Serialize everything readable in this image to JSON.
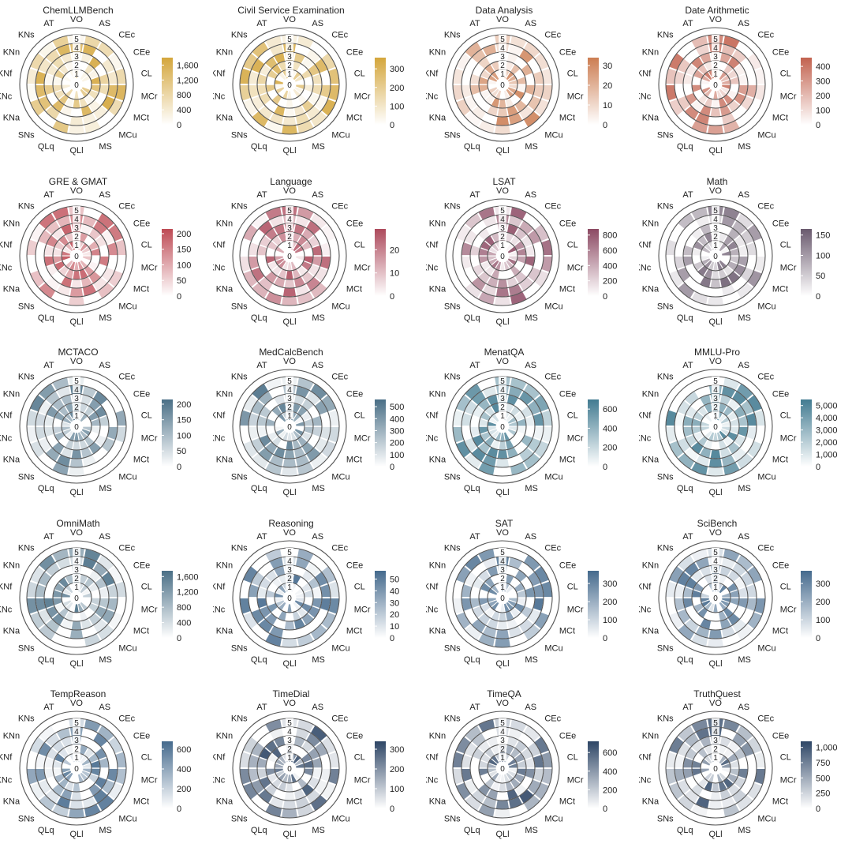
{
  "palettes": {
    "gold": "#d4a63c",
    "orange": "#cc7d52",
    "rust": "#c2624f",
    "red": "#be4b55",
    "crimson": "#ad4a5c",
    "maroon": "#8c4a63",
    "plum": "#6a5a6e",
    "slate": "#4a6f86",
    "teal": "#427b91",
    "blue": "#456a8d",
    "navy": "#2e4666"
  },
  "categories": [
    "VO",
    "AS",
    "CEc",
    "CEe",
    "CL",
    "MCr",
    "MCt",
    "MCu",
    "MS",
    "QLl",
    "QLq",
    "SNs",
    "KNa",
    "KNc",
    "KNf",
    "KNn",
    "KNs",
    "AT"
  ],
  "ring_labels": [
    "0",
    "1",
    "2",
    "3",
    "4",
    "5"
  ],
  "chart_data": [
    {
      "type": "polar-heatmap",
      "title": "ChemLLMBench",
      "palette": "gold",
      "colorbar_max": 1800,
      "colorbar_ticks": [
        "1,600",
        "1,200",
        "800",
        "400",
        "0"
      ],
      "colorbar_values": [
        1600,
        1200,
        800,
        400,
        0
      ]
    },
    {
      "type": "polar-heatmap",
      "title": "Civil Service Examination",
      "palette": "gold",
      "colorbar_max": 360,
      "colorbar_ticks": [
        "300",
        "200",
        "100",
        "0"
      ],
      "colorbar_values": [
        300,
        200,
        100,
        0
      ]
    },
    {
      "type": "polar-heatmap",
      "title": "Data Analysis",
      "palette": "orange",
      "colorbar_max": 34,
      "colorbar_ticks": [
        "30",
        "20",
        "10",
        "0"
      ],
      "colorbar_values": [
        30,
        20,
        10,
        0
      ]
    },
    {
      "type": "polar-heatmap",
      "title": "Date Arithmetic",
      "palette": "rust",
      "colorbar_max": 460,
      "colorbar_ticks": [
        "400",
        "300",
        "200",
        "100",
        "0"
      ],
      "colorbar_values": [
        400,
        300,
        200,
        100,
        0
      ]
    },
    {
      "type": "polar-heatmap",
      "title": "GRE & GMAT",
      "palette": "red",
      "colorbar_max": 215,
      "colorbar_ticks": [
        "200",
        "150",
        "100",
        "50",
        "0"
      ],
      "colorbar_values": [
        200,
        150,
        100,
        50,
        0
      ]
    },
    {
      "type": "polar-heatmap",
      "title": "Language",
      "palette": "crimson",
      "colorbar_max": 29,
      "colorbar_ticks": [
        "20",
        "10",
        "0"
      ],
      "colorbar_values": [
        20,
        10,
        0
      ]
    },
    {
      "type": "polar-heatmap",
      "title": "LSAT",
      "palette": "maroon",
      "colorbar_max": 880,
      "colorbar_ticks": [
        "800",
        "600",
        "400",
        "200",
        "0"
      ],
      "colorbar_values": [
        800,
        600,
        400,
        200,
        0
      ]
    },
    {
      "type": "polar-heatmap",
      "title": "Math",
      "palette": "plum",
      "colorbar_max": 165,
      "colorbar_ticks": [
        "150",
        "100",
        "50",
        "0"
      ],
      "colorbar_values": [
        150,
        100,
        50,
        0
      ]
    },
    {
      "type": "polar-heatmap",
      "title": "MCTACO",
      "palette": "slate",
      "colorbar_max": 215,
      "colorbar_ticks": [
        "200",
        "150",
        "100",
        "50",
        "0"
      ],
      "colorbar_values": [
        200,
        150,
        100,
        50,
        0
      ]
    },
    {
      "type": "polar-heatmap",
      "title": "MedCalcBench",
      "palette": "slate",
      "colorbar_max": 560,
      "colorbar_ticks": [
        "500",
        "400",
        "300",
        "200",
        "100",
        "0"
      ],
      "colorbar_values": [
        500,
        400,
        300,
        200,
        100,
        0
      ]
    },
    {
      "type": "polar-heatmap",
      "title": "MenatQA",
      "palette": "teal",
      "colorbar_max": 700,
      "colorbar_ticks": [
        "600",
        "400",
        "200",
        "0"
      ],
      "colorbar_values": [
        600,
        400,
        200,
        0
      ]
    },
    {
      "type": "polar-heatmap",
      "title": "MMLU-Pro",
      "palette": "teal",
      "colorbar_max": 5500,
      "colorbar_ticks": [
        "5,000",
        "4,000",
        "3,000",
        "2,000",
        "1,000",
        "0"
      ],
      "colorbar_values": [
        5000,
        4000,
        3000,
        2000,
        1000,
        0
      ]
    },
    {
      "type": "polar-heatmap",
      "title": "OmniMath",
      "palette": "slate",
      "colorbar_max": 1750,
      "colorbar_ticks": [
        "1,600",
        "1,200",
        "800",
        "400",
        "0"
      ],
      "colorbar_values": [
        1600,
        1200,
        800,
        400,
        0
      ]
    },
    {
      "type": "polar-heatmap",
      "title": "Reasoning",
      "palette": "blue",
      "colorbar_max": 57,
      "colorbar_ticks": [
        "50",
        "40",
        "30",
        "20",
        "10",
        "0"
      ],
      "colorbar_values": [
        50,
        40,
        30,
        20,
        10,
        0
      ]
    },
    {
      "type": "polar-heatmap",
      "title": "SAT",
      "palette": "blue",
      "colorbar_max": 370,
      "colorbar_ticks": [
        "300",
        "200",
        "100",
        "0"
      ],
      "colorbar_values": [
        300,
        200,
        100,
        0
      ]
    },
    {
      "type": "polar-heatmap",
      "title": "SciBench",
      "palette": "blue",
      "colorbar_max": 370,
      "colorbar_ticks": [
        "300",
        "200",
        "100",
        "0"
      ],
      "colorbar_values": [
        300,
        200,
        100,
        0
      ]
    },
    {
      "type": "polar-heatmap",
      "title": "TempReason",
      "palette": "blue",
      "colorbar_max": 680,
      "colorbar_ticks": [
        "600",
        "400",
        "200",
        "0"
      ],
      "colorbar_values": [
        600,
        400,
        200,
        0
      ]
    },
    {
      "type": "polar-heatmap",
      "title": "TimeDial",
      "palette": "navy",
      "colorbar_max": 340,
      "colorbar_ticks": [
        "300",
        "200",
        "100",
        "0"
      ],
      "colorbar_values": [
        300,
        200,
        100,
        0
      ]
    },
    {
      "type": "polar-heatmap",
      "title": "TimeQA",
      "palette": "navy",
      "colorbar_max": 720,
      "colorbar_ticks": [
        "600",
        "400",
        "200",
        "0"
      ],
      "colorbar_values": [
        600,
        400,
        200,
        0
      ]
    },
    {
      "type": "polar-heatmap",
      "title": "TruthQuest",
      "palette": "navy",
      "colorbar_max": 1100,
      "colorbar_ticks": [
        "1,000",
        "750",
        "500",
        "250",
        "0"
      ],
      "colorbar_values": [
        1000,
        750,
        500,
        250,
        0
      ]
    }
  ]
}
